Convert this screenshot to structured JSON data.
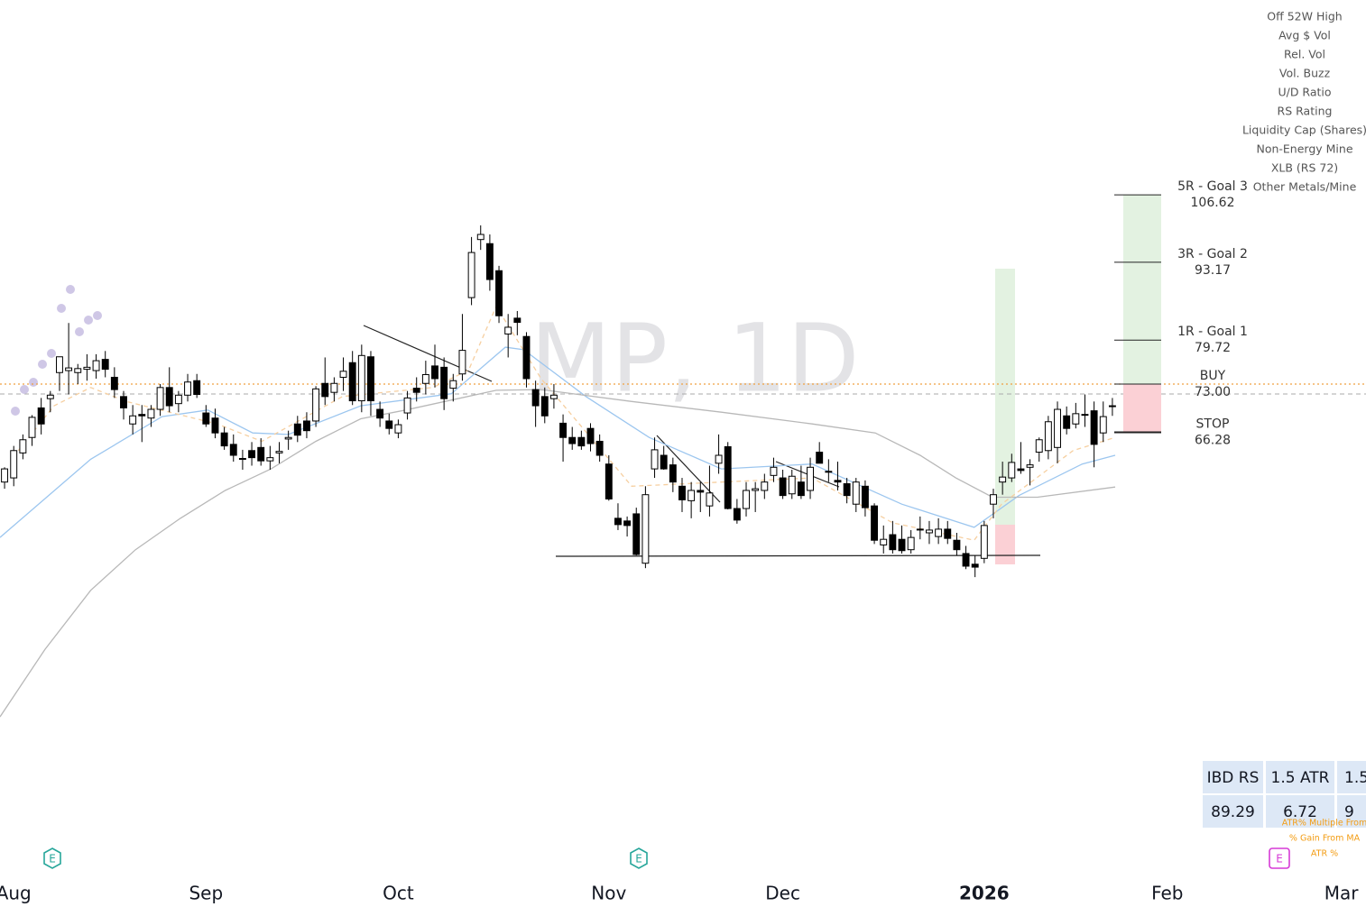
{
  "chart_data": {
    "type": "candlestick",
    "watermark": "MP, 1D",
    "log_scale": true,
    "ylim": [
      27.1,
      157.5
    ],
    "xlim": [
      -0.5,
      148.7
    ],
    "xticks": [
      {
        "value": 1,
        "label": "Aug"
      },
      {
        "value": 22,
        "label": "Sep"
      },
      {
        "value": 43,
        "label": "Oct"
      },
      {
        "value": 66,
        "label": "Nov"
      },
      {
        "value": 85,
        "label": "Dec"
      },
      {
        "value": 107,
        "label": "2026",
        "bold": true
      },
      {
        "value": 127,
        "label": "Feb"
      },
      {
        "value": 146,
        "label": "Mar"
      }
    ],
    "up_color": "#ffffff",
    "down_color": "#000000",
    "open": [
      60.0,
      60.5,
      63.6,
      65.6,
      69.6,
      70.9,
      74.7,
      75.0,
      74.7,
      75.2,
      75.0,
      76.7,
      74.0,
      71.2,
      67.4,
      68.7,
      68.2,
      69.4,
      72.5,
      70.2,
      71.4,
      73.5,
      68.9,
      68.2,
      66.2,
      64.7,
      62.9,
      63.9,
      64.3,
      62.6,
      63.6,
      65.4,
      67.4,
      67.8,
      67.8,
      73.1,
      71.8,
      74.0,
      76.2,
      70.6,
      77.1,
      69.4,
      67.8,
      66.2,
      68.9,
      72.4,
      73.1,
      75.7,
      75.5,
      72.4,
      74.5,
      86.8,
      97.5,
      96.7,
      91.6,
      80.7,
      83.3,
      80.3,
      72.2,
      71.2,
      70.9,
      67.5,
      65.6,
      65.6,
      66.8,
      65.1,
      62.2,
      55.8,
      55.5,
      56.3,
      51.0,
      61.6,
      63.3,
      62.1,
      59.5,
      57.8,
      59.0,
      57.2,
      62.3,
      64.4,
      56.9,
      56.9,
      59.0,
      59.0,
      60.8,
      60.5,
      58.6,
      60.0,
      59.0,
      63.7,
      61.3,
      60.2,
      59.8,
      57.4,
      59.5,
      57.2,
      52.9,
      54.0,
      53.5,
      52.4,
      54.6,
      54.2,
      53.8,
      54.6,
      53.4,
      52.0,
      50.9,
      51.5,
      57.4,
      60.0,
      60.5,
      61.6,
      61.8,
      63.7,
      63.9,
      64.3,
      68.5,
      67.4,
      68.6,
      69.2,
      66.2,
      69.9
    ],
    "high": [
      61.8,
      64.5,
      66.0,
      68.6,
      71.0,
      72.0,
      77.0,
      82.5,
      76.0,
      77.5,
      77.5,
      78.0,
      75.5,
      72.0,
      70.0,
      70.0,
      70.0,
      73.0,
      75.5,
      72.0,
      74.5,
      74.5,
      70.0,
      69.5,
      67.0,
      66.0,
      64.0,
      65.0,
      65.5,
      64.5,
      65.0,
      66.5,
      68.5,
      69.0,
      72.7,
      77.0,
      74.0,
      77.0,
      78.0,
      79.0,
      78.0,
      70.5,
      68.8,
      68.0,
      72.0,
      74.0,
      76.5,
      79.0,
      77.0,
      74.5,
      84.0,
      98.0,
      100.3,
      98.5,
      92.5,
      84.0,
      84.5,
      81.0,
      73.5,
      72.5,
      73.0,
      68.7,
      67.0,
      66.5,
      67.5,
      66.0,
      63.3,
      57.5,
      56.0,
      57.0,
      59.5,
      65.6,
      64.5,
      63.0,
      60.5,
      60.0,
      60.0,
      62.0,
      66.0,
      65.0,
      58.0,
      60.0,
      60.0,
      61.0,
      63.0,
      61.5,
      61.5,
      62.0,
      63.0,
      65.0,
      62.8,
      62.5,
      60.5,
      60.5,
      60.2,
      57.5,
      55.0,
      55.5,
      55.0,
      54.5,
      56.0,
      55.5,
      55.8,
      55.5,
      54.2,
      52.8,
      51.8,
      55.5,
      59.2,
      62.5,
      63.5,
      65.0,
      62.8,
      65.6,
      68.5,
      70.5,
      69.8,
      70.3,
      71.5,
      70.5,
      70.5,
      71.0
    ],
    "low": [
      59.2,
      59.5,
      62.8,
      64.5,
      66.0,
      69.0,
      72.0,
      71.5,
      73.0,
      73.5,
      73.8,
      74.0,
      71.0,
      68.0,
      66.0,
      65.0,
      67.0,
      68.5,
      69.0,
      69.0,
      70.5,
      71.0,
      67.0,
      65.5,
      64.0,
      62.5,
      61.5,
      62.0,
      62.0,
      61.5,
      62.3,
      64.0,
      65.0,
      65.5,
      67.0,
      70.0,
      70.5,
      72.0,
      70.0,
      69.0,
      68.5,
      67.0,
      66.0,
      65.5,
      68.0,
      70.5,
      71.5,
      72.5,
      69.3,
      70.5,
      73.5,
      85.5,
      95.5,
      88.0,
      82.5,
      77.0,
      80.5,
      72.5,
      67.0,
      67.5,
      69.5,
      62.5,
      64.0,
      64.0,
      63.8,
      62.5,
      57.8,
      54.5,
      53.8,
      51.8,
      50.5,
      60.5,
      61.5,
      58.8,
      56.5,
      55.8,
      56.5,
      56.0,
      61.0,
      56.8,
      55.2,
      56.0,
      56.5,
      58.0,
      60.0,
      58.0,
      58.0,
      58.0,
      58.0,
      62.3,
      60.0,
      59.0,
      57.5,
      56.5,
      56.0,
      53.0,
      52.0,
      52.0,
      52.0,
      52.0,
      53.5,
      53.0,
      53.0,
      53.0,
      51.8,
      50.4,
      49.6,
      51.0,
      55.8,
      58.5,
      60.0,
      61.0,
      59.6,
      62.5,
      62.8,
      62.3,
      66.0,
      66.8,
      67.0,
      61.8,
      65.0,
      68.5
    ],
    "close": [
      61.6,
      63.9,
      65.3,
      68.3,
      67.4,
      71.4,
      77.1,
      75.4,
      75.3,
      75.5,
      76.5,
      75.2,
      72.2,
      69.6,
      68.5,
      68.5,
      69.4,
      72.5,
      69.9,
      71.4,
      73.3,
      71.5,
      67.4,
      66.2,
      64.5,
      63.3,
      62.8,
      63.0,
      62.6,
      63.0,
      63.8,
      65.6,
      65.9,
      66.5,
      72.3,
      71.2,
      73.1,
      74.9,
      70.6,
      77.3,
      70.6,
      68.2,
      66.8,
      67.3,
      71.0,
      71.8,
      74.4,
      73.8,
      70.9,
      73.5,
      78.1,
      95.0,
      98.5,
      90.0,
      83.7,
      81.8,
      82.6,
      73.8,
      69.9,
      68.5,
      71.4,
      65.6,
      64.8,
      64.5,
      64.8,
      63.3,
      58.0,
      55.1,
      55.0,
      51.9,
      58.5,
      64.0,
      61.6,
      60.0,
      57.9,
      59.0,
      58.8,
      58.7,
      63.3,
      56.9,
      55.6,
      59.0,
      59.2,
      60.0,
      61.8,
      58.4,
      60.7,
      58.4,
      61.8,
      62.3,
      61.2,
      60.0,
      58.4,
      60.0,
      57.0,
      53.4,
      53.5,
      52.4,
      52.3,
      53.7,
      54.6,
      54.5,
      54.6,
      53.6,
      52.4,
      50.7,
      50.6,
      55.0,
      58.5,
      60.6,
      62.4,
      61.4,
      62.1,
      65.3,
      67.7,
      69.4,
      66.8,
      68.8,
      68.7,
      64.7,
      68.4,
      69.9
    ],
    "moving_averages": [
      {
        "color": "#9cc6ef",
        "dashed": false,
        "x": [
          -0.5,
          9.4,
          17.2,
          22.2,
          27.1,
          31.0,
          38.9,
          48.8,
          54.7,
          56.7,
          63.5,
          70.4,
          78.3,
          88.2,
          98.0,
          105.9,
          110.8,
          117.7,
          121.3
        ],
        "values": [
          53.7,
          62.8,
          68.4,
          69.3,
          66.2,
          66.0,
          69.9,
          71.6,
          78.6,
          78.2,
          71.2,
          65.6,
          61.6,
          62.2,
          57.4,
          54.8,
          58.4,
          62.2,
          63.3
        ]
      },
      {
        "color": "#b8b8b8",
        "dashed": false,
        "x": [
          -0.5,
          4.4,
          9.4,
          14.3,
          19.2,
          24.1,
          29.1,
          34.0,
          38.9,
          43.8,
          53.7,
          58.6,
          68.5,
          78.3,
          88.2,
          95.1,
          100.0,
          103.9,
          107.9,
          112.8,
          121.3
        ],
        "values": [
          37.5,
          42.9,
          48.3,
          52.4,
          55.8,
          59.0,
          61.6,
          65.1,
          68.1,
          69.3,
          72.1,
          72.2,
          70.5,
          69.0,
          67.4,
          66.2,
          63.3,
          60.5,
          58.2,
          58.2,
          59.4
        ]
      },
      {
        "color": "#f6cfa0",
        "dashed": true,
        "x": [
          1.5,
          5.4,
          9.4,
          13.3,
          23.2,
          28.1,
          36.9,
          46.8,
          50.7,
          53.7,
          58.6,
          68.5,
          78.3,
          88.2,
          97.0,
          105.9,
          108.9,
          116.7,
          121.3
        ],
        "values": [
          63.9,
          69.9,
          72.5,
          70.5,
          67.4,
          65.1,
          71.2,
          72.5,
          75.1,
          85.3,
          73.8,
          59.5,
          60.0,
          60.5,
          55.3,
          53.4,
          57.4,
          63.9,
          65.6
        ]
      }
    ],
    "position": {
      "levels": [
        {
          "label": "5R - Goal 3",
          "value": 106.62
        },
        {
          "label": "3R - Goal 2",
          "value": 93.17
        },
        {
          "label": "1R - Goal 1",
          "value": 79.72
        },
        {
          "label": "BUY",
          "value": 73,
          "value_label": "73.00"
        },
        {
          "label": "STOP",
          "value": 66.28
        }
      ],
      "target_color": "#e3f2e1",
      "stop_color": "#fbd0d5",
      "buy_line_color": "#f0a040"
    }
  },
  "side_panel": [
    "Off 52W High",
    "Avg $ Vol",
    "Rel. Vol",
    "Vol. Buzz",
    "U/D Ratio",
    "RS Rating",
    "Liquidity Cap (Shares)",
    "Non-Energy Mine",
    "XLB (RS 72)",
    "Other Metals/Mine"
  ],
  "table": {
    "rows": [
      [
        "IBD RS",
        "1.5 ATR",
        "1.5"
      ],
      [
        "89.29",
        "6.72",
        "9"
      ]
    ]
  },
  "notes": [
    "ATR% Multiple From",
    "% Gain From MA",
    "ATR %"
  ],
  "icons": {
    "earnings": "E"
  }
}
